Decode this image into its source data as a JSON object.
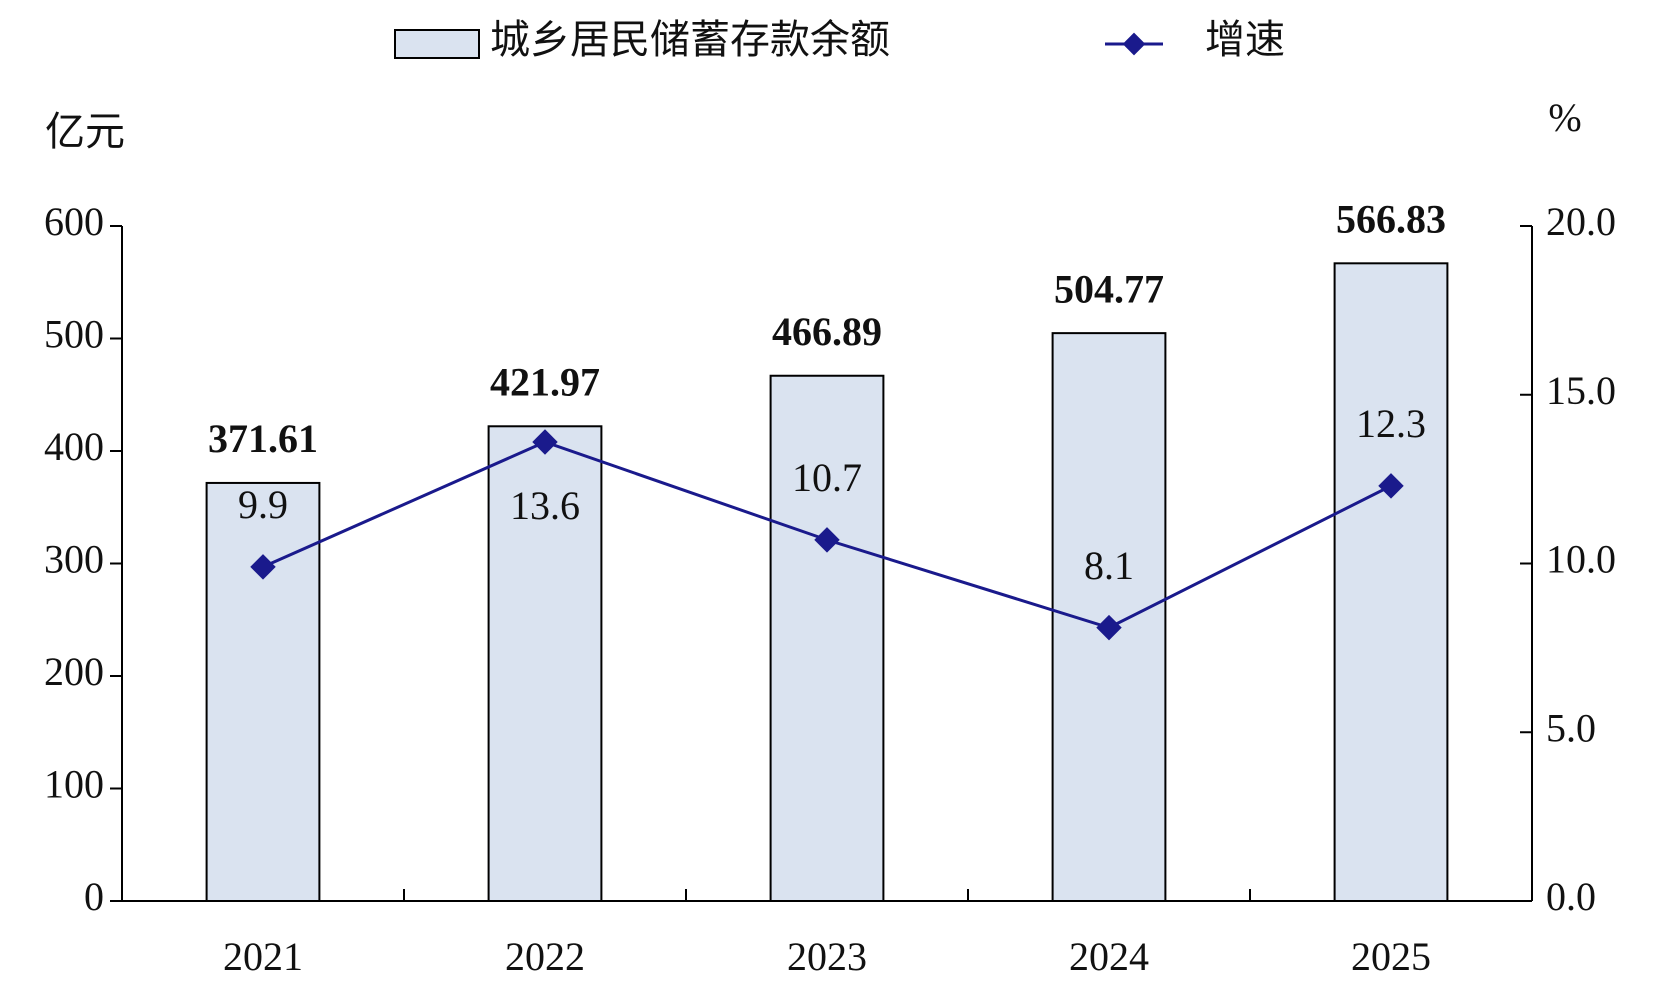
{
  "chart_data": {
    "type": "bar_line",
    "categories": [
      "2021",
      "2022",
      "2023",
      "2024",
      "2025"
    ],
    "series": [
      {
        "name": "城乡居民储蓄存款余额",
        "type": "bar",
        "color": "#dae3f0",
        "values": [
          371.61,
          421.97,
          466.89,
          504.77,
          566.83
        ]
      },
      {
        "name": "增速",
        "type": "line",
        "axis": "y2",
        "color": "#1a1a8c",
        "values": [
          9.9,
          13.6,
          10.7,
          8.1,
          12.3
        ]
      }
    ],
    "ylabel": "亿元",
    "y2label": "%",
    "ylim": [
      0,
      600
    ],
    "yticks": [
      0,
      100,
      200,
      300,
      400,
      500,
      600
    ],
    "y2lim": [
      0,
      20
    ],
    "y2ticks": [
      {
        "value": 0,
        "label": "0.0"
      },
      {
        "value": 5,
        "label": "5.0"
      },
      {
        "value": 10,
        "label": "10.0"
      },
      {
        "value": 15,
        "label": "15.0"
      },
      {
        "value": 20,
        "label": "20.0"
      }
    ],
    "legend": "top"
  }
}
